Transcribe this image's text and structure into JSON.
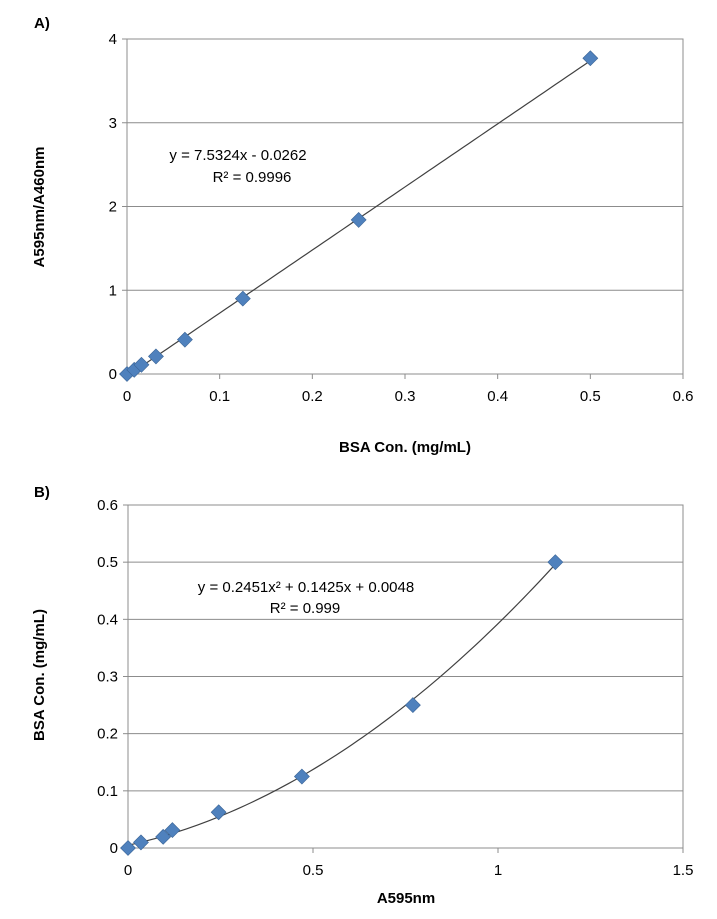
{
  "chart_data": [
    {
      "type": "scatter",
      "panel_label": "A)",
      "xlabel": "BSA Con. (mg/mL)",
      "ylabel": "A595nm/A460nm",
      "xlim": [
        0,
        0.6
      ],
      "ylim": [
        0,
        4
      ],
      "x_ticks": [
        "0",
        "0.1",
        "0.2",
        "0.3",
        "0.4",
        "0.5",
        "0.6"
      ],
      "y_ticks": [
        "0",
        "1",
        "2",
        "3",
        "4"
      ],
      "grid": "horizontal",
      "marker_color": "#4f81bd",
      "points": [
        {
          "x": 0,
          "y": 0
        },
        {
          "x": 0.0078,
          "y": 0.05
        },
        {
          "x": 0.0156,
          "y": 0.11
        },
        {
          "x": 0.03125,
          "y": 0.21
        },
        {
          "x": 0.0625,
          "y": 0.41
        },
        {
          "x": 0.125,
          "y": 0.9
        },
        {
          "x": 0.25,
          "y": 1.84
        },
        {
          "x": 0.5,
          "y": 3.77
        }
      ],
      "trendline": {
        "kind": "linear",
        "coefficients": [
          7.5324,
          -0.0262
        ]
      },
      "equation": "y = 7.5324x - 0.0262",
      "r2": "R² = 0.9996"
    },
    {
      "type": "scatter",
      "panel_label": "B)",
      "xlabel": "A595nm",
      "ylabel": "BSA Con. (mg/mL)",
      "xlim": [
        0,
        1.5
      ],
      "ylim": [
        0,
        0.6
      ],
      "x_ticks": [
        "0",
        "0.5",
        "1",
        "1.5"
      ],
      "y_ticks": [
        "0",
        "0.1",
        "0.2",
        "0.3",
        "0.4",
        "0.5",
        "0.6"
      ],
      "grid": "horizontal",
      "marker_color": "#4f81bd",
      "points": [
        {
          "x": 0,
          "y": 0
        },
        {
          "x": 0.035,
          "y": 0.0098
        },
        {
          "x": 0.095,
          "y": 0.0195
        },
        {
          "x": 0.12,
          "y": 0.0313
        },
        {
          "x": 0.245,
          "y": 0.0625
        },
        {
          "x": 0.47,
          "y": 0.125
        },
        {
          "x": 0.77,
          "y": 0.25
        },
        {
          "x": 1.155,
          "y": 0.5
        }
      ],
      "trendline": {
        "kind": "polynomial",
        "coefficients": [
          0.2451,
          0.1425,
          0.0048
        ]
      },
      "equation": "y = 0.2451x² + 0.1425x + 0.0048",
      "r2": "R² = 0.999"
    }
  ]
}
